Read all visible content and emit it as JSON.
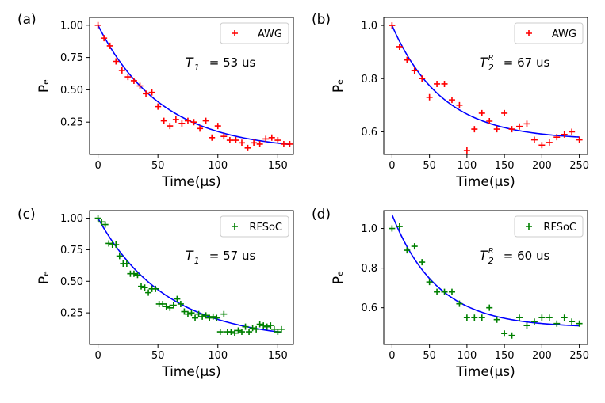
{
  "chart_data": [
    {
      "type": "scatter",
      "panel_label": "(a)",
      "xlabel": "Time(μs)",
      "ylabel": "Pₑ",
      "xlim": [
        -7,
        163
      ],
      "ylim": [
        0.0,
        1.06
      ],
      "xticks": [
        0,
        50,
        100,
        150
      ],
      "yticks": [
        0.25,
        0.5,
        0.75,
        1.0
      ],
      "ytick_labels": [
        "0.25",
        "0.50",
        "0.75",
        "1.00"
      ],
      "legend": "AWG",
      "legend_position": "top-right",
      "annotation": {
        "symbol": "T",
        "sub": "1",
        "sup": "",
        "text": "= 53 us"
      },
      "marker_color": "#ff0000",
      "fit_color": "#0000ff",
      "fit": {
        "model": "exp",
        "A": 0.97,
        "tau": 53,
        "C": 0.03
      },
      "series": [
        {
          "name": "AWG",
          "x": [
            0,
            5,
            10,
            15,
            20,
            25,
            30,
            35,
            40,
            45,
            50,
            55,
            60,
            65,
            70,
            75,
            80,
            85,
            90,
            95,
            100,
            105,
            110,
            115,
            120,
            125,
            130,
            135,
            140,
            145,
            150,
            155,
            160
          ],
          "y": [
            1.0,
            0.9,
            0.84,
            0.72,
            0.65,
            0.6,
            0.57,
            0.53,
            0.47,
            0.48,
            0.37,
            0.26,
            0.22,
            0.27,
            0.24,
            0.26,
            0.25,
            0.2,
            0.26,
            0.13,
            0.22,
            0.14,
            0.11,
            0.11,
            0.09,
            0.05,
            0.09,
            0.08,
            0.12,
            0.13,
            0.11,
            0.08,
            0.08
          ]
        }
      ]
    },
    {
      "type": "scatter",
      "panel_label": "(b)",
      "xlabel": "Time(μs)",
      "ylabel": "Pₑ",
      "xlim": [
        -11,
        261
      ],
      "ylim": [
        0.515,
        1.03
      ],
      "xticks": [
        0,
        50,
        100,
        150,
        200,
        250
      ],
      "yticks": [
        0.6,
        0.8,
        1.0
      ],
      "ytick_labels": [
        "0.6",
        "0.8",
        "1.0"
      ],
      "legend": "AWG",
      "legend_position": "top-right",
      "annotation": {
        "symbol": "T",
        "sub": "2",
        "sup": "R",
        "text": "= 67 us"
      },
      "marker_color": "#ff0000",
      "fit_color": "#0000ff",
      "fit": {
        "model": "exp",
        "A": 0.43,
        "tau": 67,
        "C": 0.57
      },
      "series": [
        {
          "name": "AWG",
          "x": [
            0,
            10,
            20,
            30,
            40,
            50,
            60,
            70,
            80,
            90,
            100,
            110,
            120,
            130,
            140,
            150,
            160,
            170,
            180,
            190,
            200,
            210,
            220,
            230,
            240,
            250
          ],
          "y": [
            1.0,
            0.92,
            0.87,
            0.83,
            0.8,
            0.73,
            0.78,
            0.78,
            0.72,
            0.7,
            0.53,
            0.61,
            0.67,
            0.64,
            0.61,
            0.67,
            0.61,
            0.62,
            0.63,
            0.57,
            0.55,
            0.56,
            0.58,
            0.59,
            0.6,
            0.57
          ]
        }
      ]
    },
    {
      "type": "scatter",
      "panel_label": "(c)",
      "xlabel": "Time(μs)",
      "ylabel": "Pₑ",
      "xlim": [
        -7,
        163
      ],
      "ylim": [
        0.0,
        1.06
      ],
      "xticks": [
        0,
        50,
        100,
        150
      ],
      "yticks": [
        0.25,
        0.5,
        0.75,
        1.0
      ],
      "ytick_labels": [
        "0.25",
        "0.50",
        "0.75",
        "1.00"
      ],
      "legend": "RFSoC",
      "legend_position": "top-right",
      "annotation": {
        "symbol": "T",
        "sub": "1",
        "sup": "",
        "text": "= 57 us"
      },
      "marker_color": "#008000",
      "fit_color": "#0000ff",
      "fit": {
        "model": "exp",
        "A": 0.97,
        "tau": 57,
        "C": 0.03
      },
      "series": [
        {
          "name": "RFSoC",
          "x": [
            0,
            3,
            6,
            9,
            12,
            15,
            18,
            21,
            24,
            27,
            30,
            33,
            36,
            39,
            42,
            45,
            48,
            51,
            54,
            57,
            60,
            63,
            66,
            69,
            72,
            75,
            78,
            81,
            84,
            87,
            90,
            93,
            96,
            99,
            102,
            105,
            108,
            111,
            114,
            117,
            120,
            123,
            126,
            129,
            132,
            135,
            138,
            141,
            144,
            147,
            150,
            153
          ],
          "y": [
            1.0,
            0.97,
            0.95,
            0.8,
            0.79,
            0.79,
            0.7,
            0.64,
            0.64,
            0.56,
            0.56,
            0.55,
            0.46,
            0.45,
            0.41,
            0.44,
            0.44,
            0.32,
            0.32,
            0.3,
            0.29,
            0.31,
            0.36,
            0.32,
            0.26,
            0.24,
            0.25,
            0.21,
            0.24,
            0.22,
            0.23,
            0.21,
            0.22,
            0.21,
            0.1,
            0.24,
            0.1,
            0.1,
            0.09,
            0.11,
            0.1,
            0.14,
            0.1,
            0.13,
            0.12,
            0.16,
            0.15,
            0.14,
            0.15,
            0.12,
            0.1,
            0.12
          ]
        }
      ]
    },
    {
      "type": "scatter",
      "panel_label": "(d)",
      "xlabel": "Time(μs)",
      "ylabel": "Pₑ",
      "xlim": [
        -11,
        261
      ],
      "ylim": [
        0.415,
        1.09
      ],
      "xticks": [
        0,
        50,
        100,
        150,
        200,
        250
      ],
      "yticks": [
        0.6,
        0.8,
        1.0
      ],
      "ytick_labels": [
        "0.6",
        "0.8",
        "1.0"
      ],
      "legend": "RFSoC",
      "legend_position": "top-right",
      "annotation": {
        "symbol": "T",
        "sub": "2",
        "sup": "R",
        "text": "= 60 us"
      },
      "marker_color": "#008000",
      "fit_color": "#0000ff",
      "fit": {
        "model": "exp",
        "A": 0.57,
        "tau": 60,
        "C": 0.5
      },
      "series": [
        {
          "name": "RFSoC",
          "x": [
            0,
            10,
            20,
            30,
            40,
            50,
            60,
            70,
            80,
            90,
            100,
            110,
            120,
            130,
            140,
            150,
            160,
            170,
            180,
            190,
            200,
            210,
            220,
            230,
            240,
            250
          ],
          "y": [
            1.0,
            1.01,
            0.89,
            0.91,
            0.83,
            0.73,
            0.68,
            0.68,
            0.68,
            0.62,
            0.55,
            0.55,
            0.55,
            0.6,
            0.54,
            0.47,
            0.46,
            0.55,
            0.51,
            0.53,
            0.55,
            0.55,
            0.52,
            0.55,
            0.53,
            0.52
          ]
        }
      ]
    }
  ]
}
